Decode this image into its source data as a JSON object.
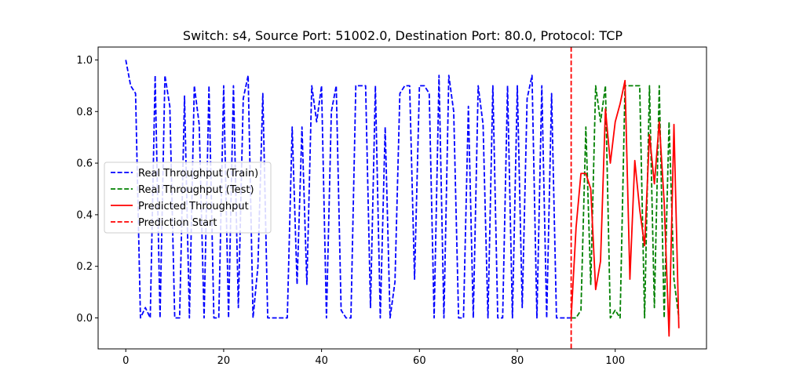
{
  "chart_data": {
    "type": "line",
    "title": "Switch: s4, Source Port: 51002.0, Destination Port: 80.0, Protocol: TCP",
    "xlabel": "",
    "ylabel": "",
    "xlim": [
      -5.65,
      118.65
    ],
    "ylim": [
      -0.12,
      1.05
    ],
    "xticks": [
      0,
      20,
      40,
      60,
      80,
      100
    ],
    "yticks": [
      0.0,
      0.2,
      0.4,
      0.6,
      0.8,
      1.0
    ],
    "xtick_labels": [
      "0",
      "20",
      "40",
      "60",
      "80",
      "100"
    ],
    "ytick_labels": [
      "0.0",
      "0.2",
      "0.4",
      "0.6",
      "0.8",
      "1.0"
    ],
    "grid": false,
    "legend_position": "center-left",
    "prediction_start": 91,
    "series": [
      {
        "name": "Real Throughput (Train)",
        "color": "#0000ff",
        "style": "dashed",
        "x": [
          0,
          1,
          2,
          3,
          4,
          5,
          6,
          7,
          8,
          9,
          10,
          11,
          12,
          13,
          14,
          15,
          16,
          17,
          18,
          19,
          20,
          21,
          22,
          23,
          24,
          25,
          26,
          27,
          28,
          29,
          30,
          31,
          32,
          33,
          34,
          35,
          36,
          37,
          38,
          39,
          40,
          41,
          42,
          43,
          44,
          45,
          46,
          47,
          48,
          49,
          50,
          51,
          52,
          53,
          54,
          55,
          56,
          57,
          58,
          59,
          60,
          61,
          62,
          63,
          64,
          65,
          66,
          67,
          68,
          69,
          70,
          71,
          72,
          73,
          74,
          75,
          76,
          77,
          78,
          79,
          80,
          81,
          82,
          83,
          84,
          85,
          86,
          87,
          88,
          89,
          90,
          91
        ],
        "y": [
          1.0,
          0.9,
          0.87,
          0.0,
          0.04,
          0.0,
          0.94,
          0.0,
          0.94,
          0.82,
          0.0,
          0.0,
          0.86,
          0.0,
          0.9,
          0.75,
          0.0,
          0.9,
          0.0,
          0.0,
          0.9,
          0.0,
          0.9,
          0.04,
          0.85,
          0.94,
          0.0,
          0.2,
          0.87,
          0.0,
          0.0,
          0.0,
          0.0,
          0.0,
          0.74,
          0.13,
          0.74,
          0.13,
          0.9,
          0.76,
          0.9,
          0.0,
          0.8,
          0.9,
          0.03,
          0.0,
          0.0,
          0.9,
          0.9,
          0.9,
          0.04,
          0.9,
          0.0,
          0.74,
          0.0,
          0.14,
          0.87,
          0.9,
          0.9,
          0.15,
          0.9,
          0.9,
          0.87,
          0.0,
          0.94,
          0.0,
          0.94,
          0.8,
          0.0,
          0.0,
          0.82,
          0.0,
          0.9,
          0.75,
          0.0,
          0.9,
          0.0,
          0.0,
          0.9,
          0.0,
          0.9,
          0.04,
          0.85,
          0.94,
          0.0,
          0.9,
          0.0,
          0.87,
          0.0,
          0.0,
          0.0,
          0.0
        ]
      },
      {
        "name": "Real Throughput (Test)",
        "color": "#008000",
        "style": "dashed",
        "x": [
          91,
          92,
          93,
          94,
          95,
          96,
          97,
          98,
          99,
          100,
          101,
          102,
          103,
          104,
          105,
          106,
          107,
          108,
          109,
          110,
          111,
          112,
          113
        ],
        "y": [
          0.0,
          0.0,
          0.03,
          0.74,
          0.13,
          0.9,
          0.76,
          0.9,
          0.0,
          0.03,
          0.0,
          0.9,
          0.9,
          0.9,
          0.9,
          0.0,
          0.9,
          0.04,
          0.9,
          0.0,
          0.76,
          0.15,
          0.0
        ]
      },
      {
        "name": "Predicted Throughput",
        "color": "#ff0000",
        "style": "solid",
        "x": [
          91,
          92,
          93,
          94,
          95,
          96,
          97,
          98,
          99,
          100,
          101,
          102,
          103,
          104,
          105,
          106,
          107,
          108,
          109,
          110,
          111,
          112,
          113
        ],
        "y": [
          0.0,
          0.35,
          0.56,
          0.56,
          0.5,
          0.11,
          0.22,
          0.81,
          0.6,
          0.76,
          0.83,
          0.92,
          0.15,
          0.61,
          0.42,
          0.28,
          0.71,
          0.52,
          0.76,
          0.45,
          -0.07,
          0.75,
          -0.04
        ]
      }
    ],
    "legend": [
      {
        "label": "Real Throughput (Train)",
        "color": "#0000ff",
        "style": "dashed"
      },
      {
        "label": "Real Throughput (Test)",
        "color": "#008000",
        "style": "dashed"
      },
      {
        "label": "Predicted Throughput",
        "color": "#ff0000",
        "style": "solid"
      },
      {
        "label": "Prediction Start",
        "color": "#ff0000",
        "style": "dashed"
      }
    ]
  }
}
